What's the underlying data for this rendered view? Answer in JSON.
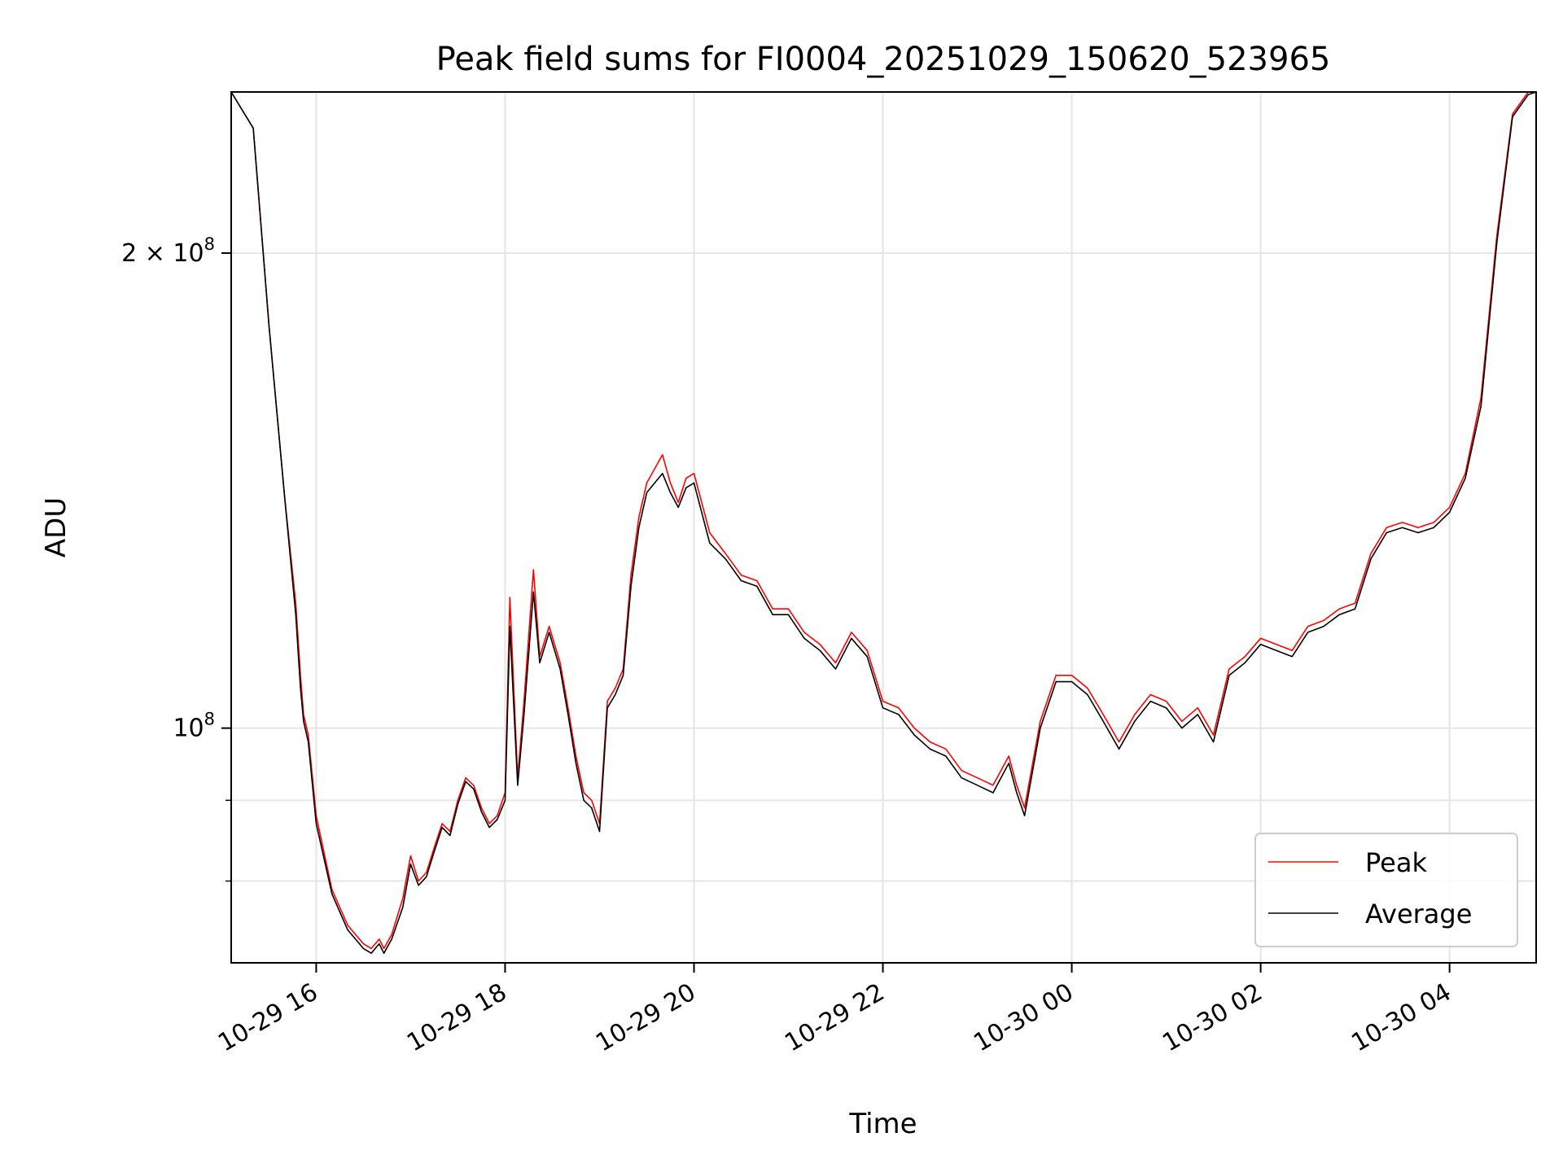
{
  "chart_data": {
    "type": "line",
    "title": "Peak field sums for FI0004_20251029_150620_523965",
    "xlabel": "Time",
    "ylabel": "ADU",
    "y_scale": "log",
    "grid": true,
    "legend_position": "lower-right",
    "xlim": [
      "2025-10-29 15:06",
      "2025-10-30 04:55"
    ],
    "ylim": [
      71000000,
      253000000
    ],
    "x_ticks": [
      {
        "t": "2025-10-29 16:00",
        "label": "10-29 16"
      },
      {
        "t": "2025-10-29 18:00",
        "label": "10-29 18"
      },
      {
        "t": "2025-10-29 20:00",
        "label": "10-29 20"
      },
      {
        "t": "2025-10-29 22:00",
        "label": "10-29 22"
      },
      {
        "t": "2025-10-30 00:00",
        "label": "10-30 00"
      },
      {
        "t": "2025-10-30 02:00",
        "label": "10-30 02"
      },
      {
        "t": "2025-10-30 04:00",
        "label": "10-30 04"
      }
    ],
    "y_ticks": [
      {
        "value": 100000000,
        "base": "10",
        "exp": "8",
        "mant": ""
      },
      {
        "value": 200000000,
        "base": "10",
        "exp": "8",
        "mant": "2 × "
      }
    ],
    "y_minor_ticks": [
      80000000,
      90000000
    ],
    "series": [
      {
        "name": "Peak",
        "color": "#ff0000",
        "x": [
          "2025-10-29 15:06",
          "2025-10-29 15:20",
          "2025-10-29 15:30",
          "2025-10-29 15:40",
          "2025-10-29 15:47",
          "2025-10-29 15:50",
          "2025-10-29 15:52",
          "2025-10-29 15:55",
          "2025-10-29 16:00",
          "2025-10-29 16:10",
          "2025-10-29 16:20",
          "2025-10-29 16:30",
          "2025-10-29 16:35",
          "2025-10-29 16:40",
          "2025-10-29 16:43",
          "2025-10-29 16:48",
          "2025-10-29 16:55",
          "2025-10-29 17:00",
          "2025-10-29 17:05",
          "2025-10-29 17:10",
          "2025-10-29 17:15",
          "2025-10-29 17:20",
          "2025-10-29 17:25",
          "2025-10-29 17:30",
          "2025-10-29 17:35",
          "2025-10-29 17:40",
          "2025-10-29 17:45",
          "2025-10-29 17:50",
          "2025-10-29 17:55",
          "2025-10-29 18:00",
          "2025-10-29 18:03",
          "2025-10-29 18:08",
          "2025-10-29 18:12",
          "2025-10-29 18:18",
          "2025-10-29 18:22",
          "2025-10-29 18:28",
          "2025-10-29 18:35",
          "2025-10-29 18:40",
          "2025-10-29 18:45",
          "2025-10-29 18:50",
          "2025-10-29 18:55",
          "2025-10-29 19:00",
          "2025-10-29 19:05",
          "2025-10-29 19:10",
          "2025-10-29 19:15",
          "2025-10-29 19:20",
          "2025-10-29 19:25",
          "2025-10-29 19:30",
          "2025-10-29 19:35",
          "2025-10-29 19:40",
          "2025-10-29 19:45",
          "2025-10-29 19:50",
          "2025-10-29 19:55",
          "2025-10-29 20:00",
          "2025-10-29 20:10",
          "2025-10-29 20:20",
          "2025-10-29 20:30",
          "2025-10-29 20:40",
          "2025-10-29 20:50",
          "2025-10-29 21:00",
          "2025-10-29 21:10",
          "2025-10-29 21:20",
          "2025-10-29 21:30",
          "2025-10-29 21:40",
          "2025-10-29 21:50",
          "2025-10-29 22:00",
          "2025-10-29 22:10",
          "2025-10-29 22:20",
          "2025-10-29 22:30",
          "2025-10-29 22:40",
          "2025-10-29 22:50",
          "2025-10-29 23:00",
          "2025-10-29 23:10",
          "2025-10-29 23:20",
          "2025-10-29 23:25",
          "2025-10-29 23:30",
          "2025-10-29 23:40",
          "2025-10-29 23:50",
          "2025-10-30 00:00",
          "2025-10-30 00:10",
          "2025-10-30 00:20",
          "2025-10-30 00:30",
          "2025-10-30 00:40",
          "2025-10-30 00:50",
          "2025-10-30 01:00",
          "2025-10-30 01:10",
          "2025-10-30 01:20",
          "2025-10-30 01:30",
          "2025-10-30 01:40",
          "2025-10-30 01:50",
          "2025-10-30 02:00",
          "2025-10-30 02:10",
          "2025-10-30 02:20",
          "2025-10-30 02:30",
          "2025-10-30 02:40",
          "2025-10-30 02:50",
          "2025-10-30 03:00",
          "2025-10-30 03:10",
          "2025-10-30 03:20",
          "2025-10-30 03:30",
          "2025-10-30 03:40",
          "2025-10-30 03:50",
          "2025-10-30 04:00",
          "2025-10-30 04:10",
          "2025-10-30 04:20",
          "2025-10-30 04:30",
          "2025-10-30 04:40",
          "2025-10-30 04:50",
          "2025-10-30 04:55"
        ],
        "y": [
          253000000,
          240000000,
          180000000,
          140000000,
          120000000,
          108000000,
          102000000,
          99000000,
          88000000,
          79000000,
          75000000,
          73000000,
          72500000,
          73500000,
          72500000,
          74000000,
          78000000,
          83000000,
          80000000,
          81000000,
          84000000,
          87000000,
          86000000,
          90000000,
          93000000,
          92000000,
          89000000,
          87000000,
          88000000,
          91000000,
          121000000,
          93000000,
          104000000,
          126000000,
          111000000,
          116000000,
          110000000,
          103000000,
          96000000,
          91000000,
          90000000,
          87000000,
          104000000,
          106000000,
          109000000,
          125000000,
          136000000,
          143000000,
          146000000,
          149000000,
          143000000,
          139000000,
          144000000,
          145000000,
          133000000,
          129000000,
          125000000,
          124000000,
          119000000,
          119000000,
          115000000,
          113000000,
          110000000,
          115000000,
          112000000,
          104000000,
          103000000,
          100000000,
          98000000,
          97000000,
          94000000,
          93000000,
          92000000,
          96000000,
          92000000,
          89000000,
          101000000,
          108000000,
          108000000,
          106000000,
          102000000,
          98000000,
          102000000,
          105000000,
          104000000,
          101000000,
          103000000,
          99000000,
          109000000,
          111000000,
          114000000,
          113000000,
          112000000,
          116000000,
          117000000,
          119000000,
          120000000,
          129000000,
          134000000,
          135000000,
          134000000,
          135000000,
          138000000,
          145000000,
          162000000,
          205000000,
          245000000,
          253000000,
          253000000
        ]
      },
      {
        "name": "Average",
        "color": "#000000",
        "x": [
          "2025-10-29 15:06",
          "2025-10-29 15:20",
          "2025-10-29 15:30",
          "2025-10-29 15:40",
          "2025-10-29 15:47",
          "2025-10-29 15:50",
          "2025-10-29 15:52",
          "2025-10-29 15:55",
          "2025-10-29 16:00",
          "2025-10-29 16:10",
          "2025-10-29 16:20",
          "2025-10-29 16:30",
          "2025-10-29 16:35",
          "2025-10-29 16:40",
          "2025-10-29 16:43",
          "2025-10-29 16:48",
          "2025-10-29 16:55",
          "2025-10-29 17:00",
          "2025-10-29 17:05",
          "2025-10-29 17:10",
          "2025-10-29 17:15",
          "2025-10-29 17:20",
          "2025-10-29 17:25",
          "2025-10-29 17:30",
          "2025-10-29 17:35",
          "2025-10-29 17:40",
          "2025-10-29 17:45",
          "2025-10-29 17:50",
          "2025-10-29 17:55",
          "2025-10-29 18:00",
          "2025-10-29 18:03",
          "2025-10-29 18:08",
          "2025-10-29 18:12",
          "2025-10-29 18:18",
          "2025-10-29 18:22",
          "2025-10-29 18:28",
          "2025-10-29 18:35",
          "2025-10-29 18:40",
          "2025-10-29 18:45",
          "2025-10-29 18:50",
          "2025-10-29 18:55",
          "2025-10-29 19:00",
          "2025-10-29 19:05",
          "2025-10-29 19:10",
          "2025-10-29 19:15",
          "2025-10-29 19:20",
          "2025-10-29 19:25",
          "2025-10-29 19:30",
          "2025-10-29 19:35",
          "2025-10-29 19:40",
          "2025-10-29 19:45",
          "2025-10-29 19:50",
          "2025-10-29 19:55",
          "2025-10-29 20:00",
          "2025-10-29 20:10",
          "2025-10-29 20:20",
          "2025-10-29 20:30",
          "2025-10-29 20:40",
          "2025-10-29 20:50",
          "2025-10-29 21:00",
          "2025-10-29 21:10",
          "2025-10-29 21:20",
          "2025-10-29 21:30",
          "2025-10-29 21:40",
          "2025-10-29 21:50",
          "2025-10-29 22:00",
          "2025-10-29 22:10",
          "2025-10-29 22:20",
          "2025-10-29 22:30",
          "2025-10-29 22:40",
          "2025-10-29 22:50",
          "2025-10-29 23:00",
          "2025-10-29 23:10",
          "2025-10-29 23:20",
          "2025-10-29 23:25",
          "2025-10-29 23:30",
          "2025-10-29 23:40",
          "2025-10-29 23:50",
          "2025-10-30 00:00",
          "2025-10-30 00:10",
          "2025-10-30 00:20",
          "2025-10-30 00:30",
          "2025-10-30 00:40",
          "2025-10-30 00:50",
          "2025-10-30 01:00",
          "2025-10-30 01:10",
          "2025-10-30 01:20",
          "2025-10-30 01:30",
          "2025-10-30 01:40",
          "2025-10-30 01:50",
          "2025-10-30 02:00",
          "2025-10-30 02:10",
          "2025-10-30 02:20",
          "2025-10-30 02:30",
          "2025-10-30 02:40",
          "2025-10-30 02:50",
          "2025-10-30 03:00",
          "2025-10-30 03:10",
          "2025-10-30 03:20",
          "2025-10-30 03:30",
          "2025-10-30 03:40",
          "2025-10-30 03:50",
          "2025-10-30 04:00",
          "2025-10-30 04:10",
          "2025-10-30 04:20",
          "2025-10-30 04:30",
          "2025-10-30 04:40",
          "2025-10-30 04:50",
          "2025-10-30 04:55"
        ],
        "y": [
          253000000,
          240000000,
          180000000,
          140000000,
          118000000,
          106000000,
          101000000,
          98000000,
          87000000,
          78500000,
          74500000,
          72500000,
          72000000,
          73000000,
          72000000,
          73500000,
          77000000,
          82000000,
          79500000,
          80500000,
          83500000,
          86500000,
          85500000,
          89500000,
          92500000,
          91500000,
          88500000,
          86500000,
          87500000,
          90000000,
          116000000,
          92000000,
          102000000,
          122000000,
          110000000,
          115000000,
          109000000,
          102000000,
          95000000,
          90000000,
          89000000,
          86000000,
          103000000,
          105000000,
          108000000,
          123000000,
          134000000,
          141000000,
          143000000,
          145000000,
          141000000,
          138000000,
          142000000,
          143000000,
          131000000,
          128000000,
          124000000,
          123000000,
          118000000,
          118000000,
          114000000,
          112000000,
          109000000,
          114000000,
          111000000,
          103000000,
          102000000,
          99000000,
          97000000,
          96000000,
          93000000,
          92000000,
          91000000,
          95000000,
          91000000,
          88000000,
          100000000,
          107000000,
          107000000,
          105000000,
          101000000,
          97000000,
          101000000,
          104000000,
          103000000,
          100000000,
          102000000,
          98000000,
          108000000,
          110000000,
          113000000,
          112000000,
          111000000,
          115000000,
          116000000,
          118000000,
          119000000,
          128000000,
          133000000,
          134000000,
          133000000,
          134000000,
          137000000,
          144000000,
          160000000,
          203000000,
          244000000,
          252000000,
          253000000
        ]
      }
    ]
  }
}
